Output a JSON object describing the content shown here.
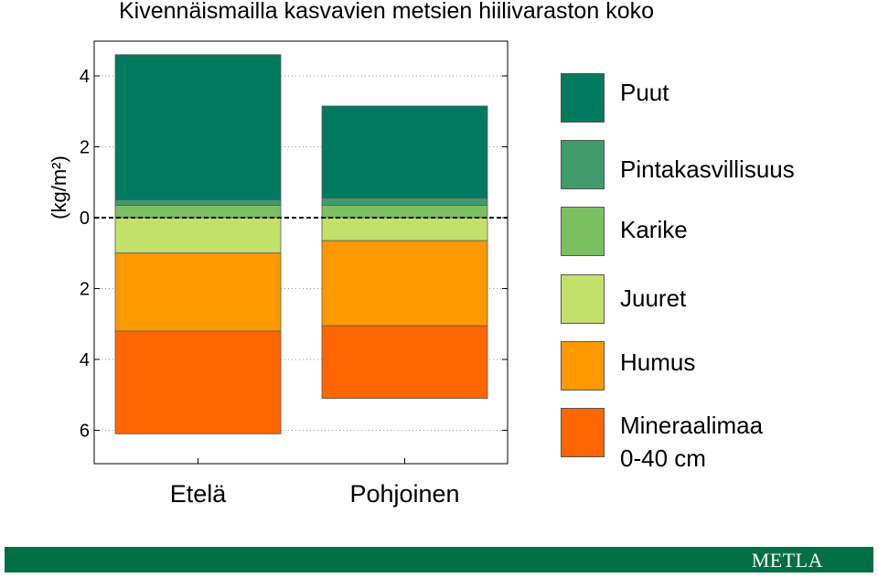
{
  "chart_data": {
    "type": "bar",
    "stacked": true,
    "diverging": true,
    "title": "Kivennäismailla kasvavien metsien hiilivaraston koko",
    "ylabel": "(kg/m²)",
    "ylim": [
      -6.5,
      5.0
    ],
    "ytick_labels": [
      "4",
      "2",
      "0",
      "2",
      "4",
      "6"
    ],
    "yticks": [
      4,
      2,
      0,
      -2,
      -4,
      -6
    ],
    "grid": true,
    "categories": [
      "Etelä",
      "Pohjoinen"
    ],
    "series": [
      {
        "name": "Puut",
        "color": "#007A5E",
        "values": [
          4.1,
          2.6
        ]
      },
      {
        "name": "Pintakasvillisuus",
        "color": "#3F9B6A",
        "values": [
          0.15,
          0.2
        ]
      },
      {
        "name": "Karike",
        "color": "#7CBF63",
        "values": [
          0.35,
          0.35
        ]
      },
      {
        "name": "Juuret",
        "color": "#C3E06A",
        "values": [
          -1.0,
          -0.65
        ]
      },
      {
        "name": "Humus",
        "color": "#FF9900",
        "values": [
          -2.2,
          -2.4
        ]
      },
      {
        "name": "Mineraalimaa 0-40 cm",
        "color": "#FF6600",
        "values": [
          -2.9,
          -2.05
        ]
      }
    ],
    "legend_position": "right",
    "legend_lines": [
      [
        "Puut"
      ],
      [
        "Pintakasvillisuus"
      ],
      [
        "Karike"
      ],
      [
        "Juuret"
      ],
      [
        "Humus"
      ],
      [
        "Mineraalimaa",
        "0-40 cm"
      ]
    ]
  },
  "footer": {
    "logo_text": "METLA",
    "bar_color": "#007044"
  }
}
